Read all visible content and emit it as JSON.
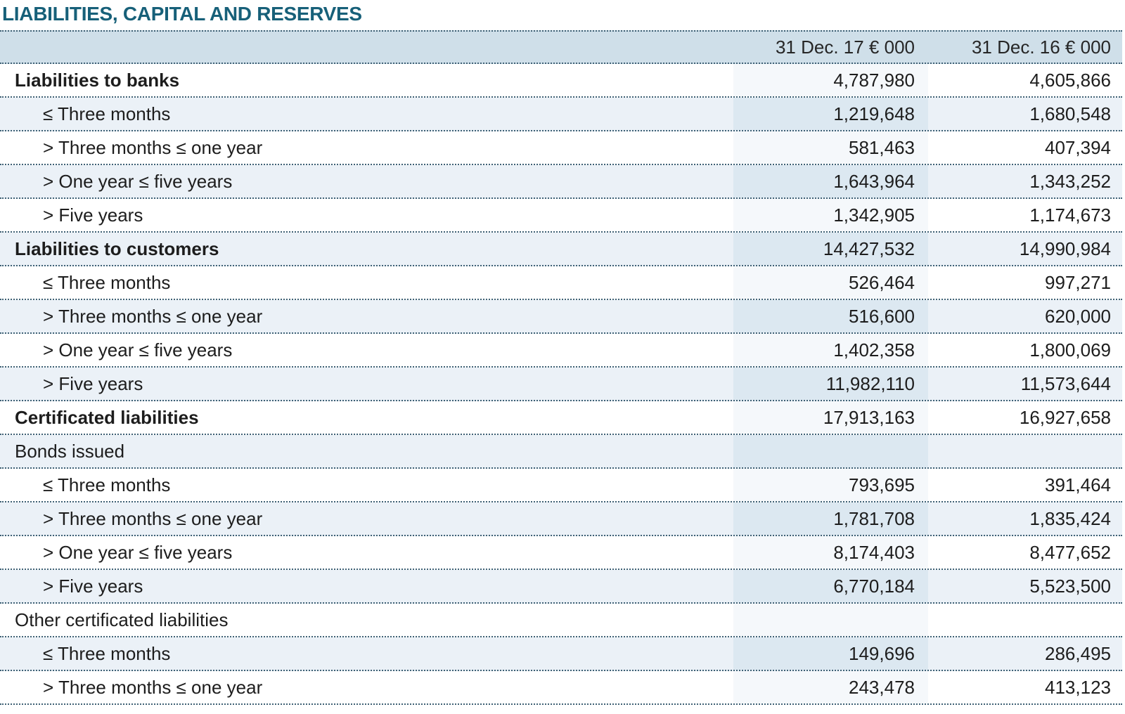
{
  "page_title": "LIABILITIES, CAPITAL AND RESERVES",
  "colors": {
    "title_accent": "#176079",
    "header_row_bg": "#cfdfe9",
    "alt_row_bg": "#ebf1f7",
    "column_band_on_white": "#f5f8fb",
    "column_band_on_alt": "#dce8f1",
    "dotted_rule": "#3f6175",
    "body_text": "#1d1d1d"
  },
  "table": {
    "columns": [
      {
        "label": "31 Dec. 17 € 000"
      },
      {
        "label": "31 Dec. 16 € 000"
      }
    ],
    "rows": [
      {
        "label": "Liabilities to banks",
        "v17": "4,787,980",
        "v16": "4,605,866",
        "style": "section-bold"
      },
      {
        "label": "≤ Three months",
        "v17": "1,219,648",
        "v16": "1,680,548",
        "style": "sub"
      },
      {
        "label": "> Three months ≤ one year",
        "v17": "581,463",
        "v16": "407,394",
        "style": "sub"
      },
      {
        "label": "> One year ≤ five years",
        "v17": "1,643,964",
        "v16": "1,343,252",
        "style": "sub"
      },
      {
        "label": "> Five years",
        "v17": "1,342,905",
        "v16": "1,174,673",
        "style": "sub"
      },
      {
        "label": "Liabilities to customers",
        "v17": "14,427,532",
        "v16": "14,990,984",
        "style": "section-bold"
      },
      {
        "label": "≤ Three months",
        "v17": "526,464",
        "v16": "997,271",
        "style": "sub"
      },
      {
        "label": "> Three months ≤ one year",
        "v17": "516,600",
        "v16": "620,000",
        "style": "sub"
      },
      {
        "label": "> One year ≤ five years",
        "v17": "1,402,358",
        "v16": "1,800,069",
        "style": "sub"
      },
      {
        "label": "> Five years",
        "v17": "11,982,110",
        "v16": "11,573,644",
        "style": "sub"
      },
      {
        "label": "Certificated liabilities",
        "v17": "17,913,163",
        "v16": "16,927,658",
        "style": "section-bold"
      },
      {
        "label": "Bonds issued",
        "v17": "",
        "v16": "",
        "style": "section"
      },
      {
        "label": "≤ Three months",
        "v17": "793,695",
        "v16": "391,464",
        "style": "sub"
      },
      {
        "label": "> Three months ≤ one year",
        "v17": "1,781,708",
        "v16": "1,835,424",
        "style": "sub"
      },
      {
        "label": "> One year ≤ five years",
        "v17": "8,174,403",
        "v16": "8,477,652",
        "style": "sub"
      },
      {
        "label": "> Five years",
        "v17": "6,770,184",
        "v16": "5,523,500",
        "style": "sub"
      },
      {
        "label": "Other certificated liabilities",
        "v17": "",
        "v16": "",
        "style": "section"
      },
      {
        "label": "≤ Three months",
        "v17": "149,696",
        "v16": "286,495",
        "style": "sub"
      },
      {
        "label": "> Three months ≤ one year",
        "v17": "243,478",
        "v16": "413,123",
        "style": "sub"
      }
    ]
  }
}
